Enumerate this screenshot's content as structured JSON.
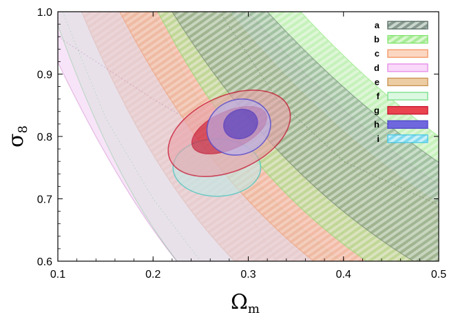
{
  "chart_data": {
    "type": "contour",
    "title": "",
    "xlabel": "Ω",
    "xlabel_sub": "m",
    "ylabel": "σ",
    "ylabel_sub": "8",
    "xlim": [
      0.1,
      0.5
    ],
    "ylim": [
      0.6,
      1.0
    ],
    "xticks": [
      0.1,
      0.2,
      0.3,
      0.4,
      0.5
    ],
    "xtick_labels": [
      "0.1",
      "0.2",
      "0.3",
      "0.4",
      "0.5"
    ],
    "yticks": [
      0.6,
      0.7,
      0.8,
      0.9,
      1.0
    ],
    "ytick_labels": [
      "0.6",
      "0.7",
      "0.8",
      "0.9",
      "1.0"
    ],
    "legend_position": "top-right",
    "bands": [
      {
        "name": "f",
        "color": "#74dd86",
        "fill": "#d7f7dc",
        "hatch": false,
        "alpha": 0.85,
        "x_at_top": [
          0.095,
          0.2
        ],
        "x_at_bottom": [
          0.21,
          0.29
        ],
        "center": [
          [
            0.105,
            1.0
          ],
          [
            0.15,
            0.83
          ],
          [
            0.2,
            0.7
          ],
          [
            0.25,
            0.6
          ]
        ]
      },
      {
        "name": "e",
        "color": "#c8904f",
        "fill": "#e8c79a",
        "hatch": true,
        "alpha": 0.55,
        "x_at_top": [
          0.125,
          0.245
        ],
        "x_at_bottom": [
          0.255,
          0.39
        ],
        "center": [
          [
            0.18,
            1.0
          ],
          [
            0.22,
            0.87
          ],
          [
            0.28,
            0.73
          ],
          [
            0.33,
            0.6
          ]
        ]
      },
      {
        "name": "d",
        "color": "#cf86cf",
        "fill": "#f3cff3",
        "hatch": false,
        "alpha": 0.55,
        "x_at_top": [
          0.075,
          0.3
        ],
        "x_at_bottom": [
          0.26,
          0.53
        ],
        "center": [
          [
            0.1,
            0.96
          ],
          [
            0.2,
            0.86
          ],
          [
            0.3,
            0.77
          ],
          [
            0.4,
            0.71
          ],
          [
            0.5,
            0.67
          ]
        ]
      },
      {
        "name": "c",
        "color": "#f3935f",
        "fill": "#fbc9a8",
        "hatch": true,
        "alpha": 0.55,
        "x_at_top": [
          0.165,
          0.28
        ],
        "x_at_bottom": [
          0.32,
          0.505
        ],
        "center": [
          [
            0.22,
            1.0
          ],
          [
            0.3,
            0.83
          ],
          [
            0.35,
            0.75
          ],
          [
            0.42,
            0.6
          ]
        ]
      },
      {
        "name": "b",
        "color": "#7fe36a",
        "fill": "#c9f1bd",
        "hatch": true,
        "alpha": 0.6,
        "x_at_top": [
          0.205,
          0.355
        ],
        "x_at_bottom": [
          0.33,
          0.58
        ],
        "center": [
          [
            0.28,
            1.0
          ],
          [
            0.35,
            0.84
          ],
          [
            0.42,
            0.73
          ],
          [
            0.5,
            0.66
          ]
        ]
      },
      {
        "name": "a",
        "color": "#52685e",
        "fill": "#b8c8be",
        "hatch": true,
        "alpha": 0.5,
        "x_at_top": [
          0.22,
          0.32
        ],
        "x_at_bottom": [
          0.39,
          0.57
        ],
        "center": [
          [
            0.27,
            1.0
          ],
          [
            0.33,
            0.86
          ],
          [
            0.4,
            0.76
          ],
          [
            0.5,
            0.69
          ]
        ]
      }
    ],
    "ellipses": [
      {
        "name": "i",
        "color": "#46c8c2",
        "fill": "#bfeae6",
        "alpha": 0.75,
        "regions": [
          {
            "level": "95%",
            "cx": 0.267,
            "cy": 0.75,
            "rx": 0.046,
            "ry": 0.046,
            "angle": 0
          }
        ]
      },
      {
        "name": "g",
        "color": "#c8102e",
        "fill": "#e8a0a8",
        "alpha": 0.75,
        "regions": [
          {
            "level": "95%",
            "cx": 0.28,
            "cy": 0.805,
            "rx": 0.068,
            "ry": 0.06,
            "angle": 24
          },
          {
            "level": "68%",
            "cx": 0.28,
            "cy": 0.81,
            "rx": 0.042,
            "ry": 0.03,
            "angle": 24
          }
        ]
      },
      {
        "name": "h",
        "color": "#5a4fcf",
        "fill": "#b9b0ea",
        "alpha": 0.85,
        "regions": [
          {
            "level": "95%",
            "cx": 0.29,
            "cy": 0.815,
            "rx": 0.034,
            "ry": 0.044,
            "angle": 20
          },
          {
            "level": "68%",
            "cx": 0.292,
            "cy": 0.82,
            "rx": 0.018,
            "ry": 0.023,
            "angle": 20
          }
        ]
      }
    ],
    "legend": [
      {
        "label": "a",
        "color": "#52685e",
        "fill": "#c9d6ce",
        "hatch": true
      },
      {
        "label": "b",
        "color": "#7fe36a",
        "fill": "#d9f7cf",
        "hatch": true
      },
      {
        "label": "c",
        "color": "#f3935f",
        "fill": "#fbd7c2",
        "hatch": false
      },
      {
        "label": "d",
        "color": "#e58ae5",
        "fill": "#f9d8f9",
        "hatch": false
      },
      {
        "label": "e",
        "color": "#c8904f",
        "fill": "#eccda3",
        "hatch": false
      },
      {
        "label": "f",
        "color": "#74dd86",
        "fill": "#dbf8e0",
        "hatch": false
      },
      {
        "label": "g",
        "color": "#c8102e",
        "fill": "#e94450",
        "hatch": false
      },
      {
        "label": "h",
        "color": "#4d45c8",
        "fill": "#6f67de",
        "hatch": false
      },
      {
        "label": "i",
        "color": "#46c8e6",
        "fill": "#c8f0f8",
        "hatch": true
      }
    ]
  }
}
